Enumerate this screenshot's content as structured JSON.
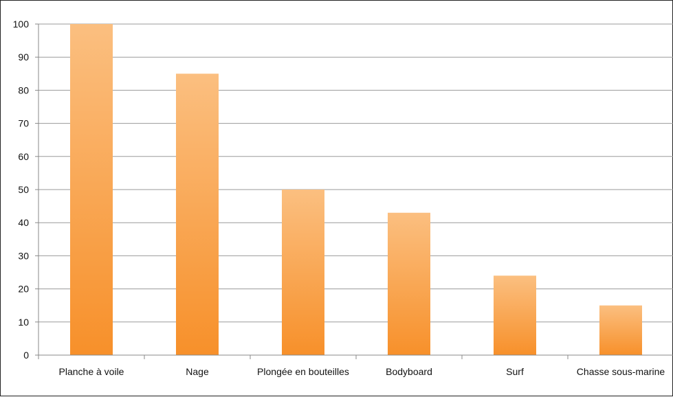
{
  "chart_data": {
    "type": "bar",
    "categories": [
      "Planche à voile",
      "Nage",
      "Plongée en bouteilles",
      "Bodyboard",
      "Surf",
      "Chasse sous-marine"
    ],
    "values": [
      100,
      85,
      50,
      43,
      24,
      15
    ],
    "ylim": [
      0,
      100
    ],
    "yticks": [
      "0",
      "10",
      "20",
      "30",
      "40",
      "50",
      "60",
      "70",
      "80",
      "90",
      "100"
    ],
    "title": "",
    "xlabel": "",
    "ylabel": "",
    "grid": true,
    "legend": "none",
    "colors": {
      "bar_top": "#FBBF80",
      "bar_bottom": "#F7902A",
      "gridline": "#9a9a9a",
      "axis": "#888888",
      "text": "#111111"
    }
  }
}
